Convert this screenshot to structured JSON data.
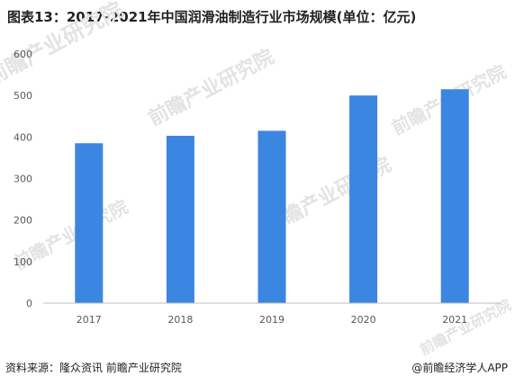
{
  "chart_data": {
    "type": "bar",
    "title": "图表13：2017-2021年中国润滑油制造行业市场规模(单位：亿元)",
    "categories": [
      "2017",
      "2018",
      "2019",
      "2020",
      "2021"
    ],
    "values": [
      385,
      403,
      415,
      500,
      515
    ],
    "ylim": [
      0,
      600
    ],
    "yticks": [
      0,
      100,
      200,
      300,
      400,
      500,
      600
    ],
    "xlabel": "",
    "ylabel": "",
    "grid": false,
    "bar_color": "#3b86e0"
  },
  "footer": {
    "source": "资料来源：隆众资讯 前瞻产业研究院",
    "credit": "@前瞻经济学人APP"
  },
  "watermark": {
    "text": "前瞻产业研究院",
    "color": "#e3e3e3"
  }
}
